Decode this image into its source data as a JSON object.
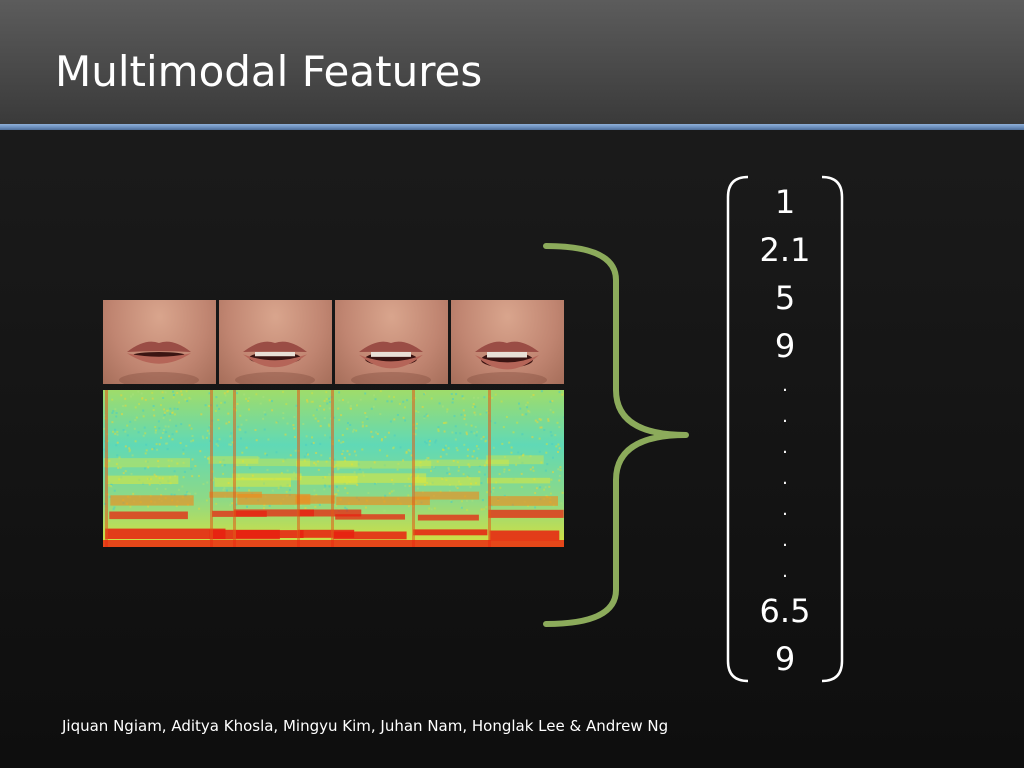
{
  "slide": {
    "title": "Multimodal Features",
    "authors": "Jiquan Ngiam, Aditya Khosla, Mingyu Kim, Juhan Nam, Honglak Lee & Andrew Ng"
  },
  "video_frames": [
    {
      "name": "mouth-frame-1",
      "open": 0.12
    },
    {
      "name": "mouth-frame-2",
      "open": 0.45
    },
    {
      "name": "mouth-frame-3",
      "open": 0.55
    },
    {
      "name": "mouth-frame-4",
      "open": 0.65
    }
  ],
  "feature_vector": {
    "values": [
      "1",
      "2.1",
      "5",
      "9",
      ".",
      ".",
      ".",
      ".",
      ".",
      ".",
      ".",
      "6.5",
      "9"
    ]
  },
  "colors": {
    "brace": "#8cab5b",
    "bracket": "#ffffff",
    "spectrogram_low": "#56d6b0",
    "spectrogram_mid": "#e8e830",
    "spectrogram_high": "#e82010"
  },
  "icons": {
    "brace": "curly-brace-icon",
    "bracket": "square-bracket-icon"
  }
}
